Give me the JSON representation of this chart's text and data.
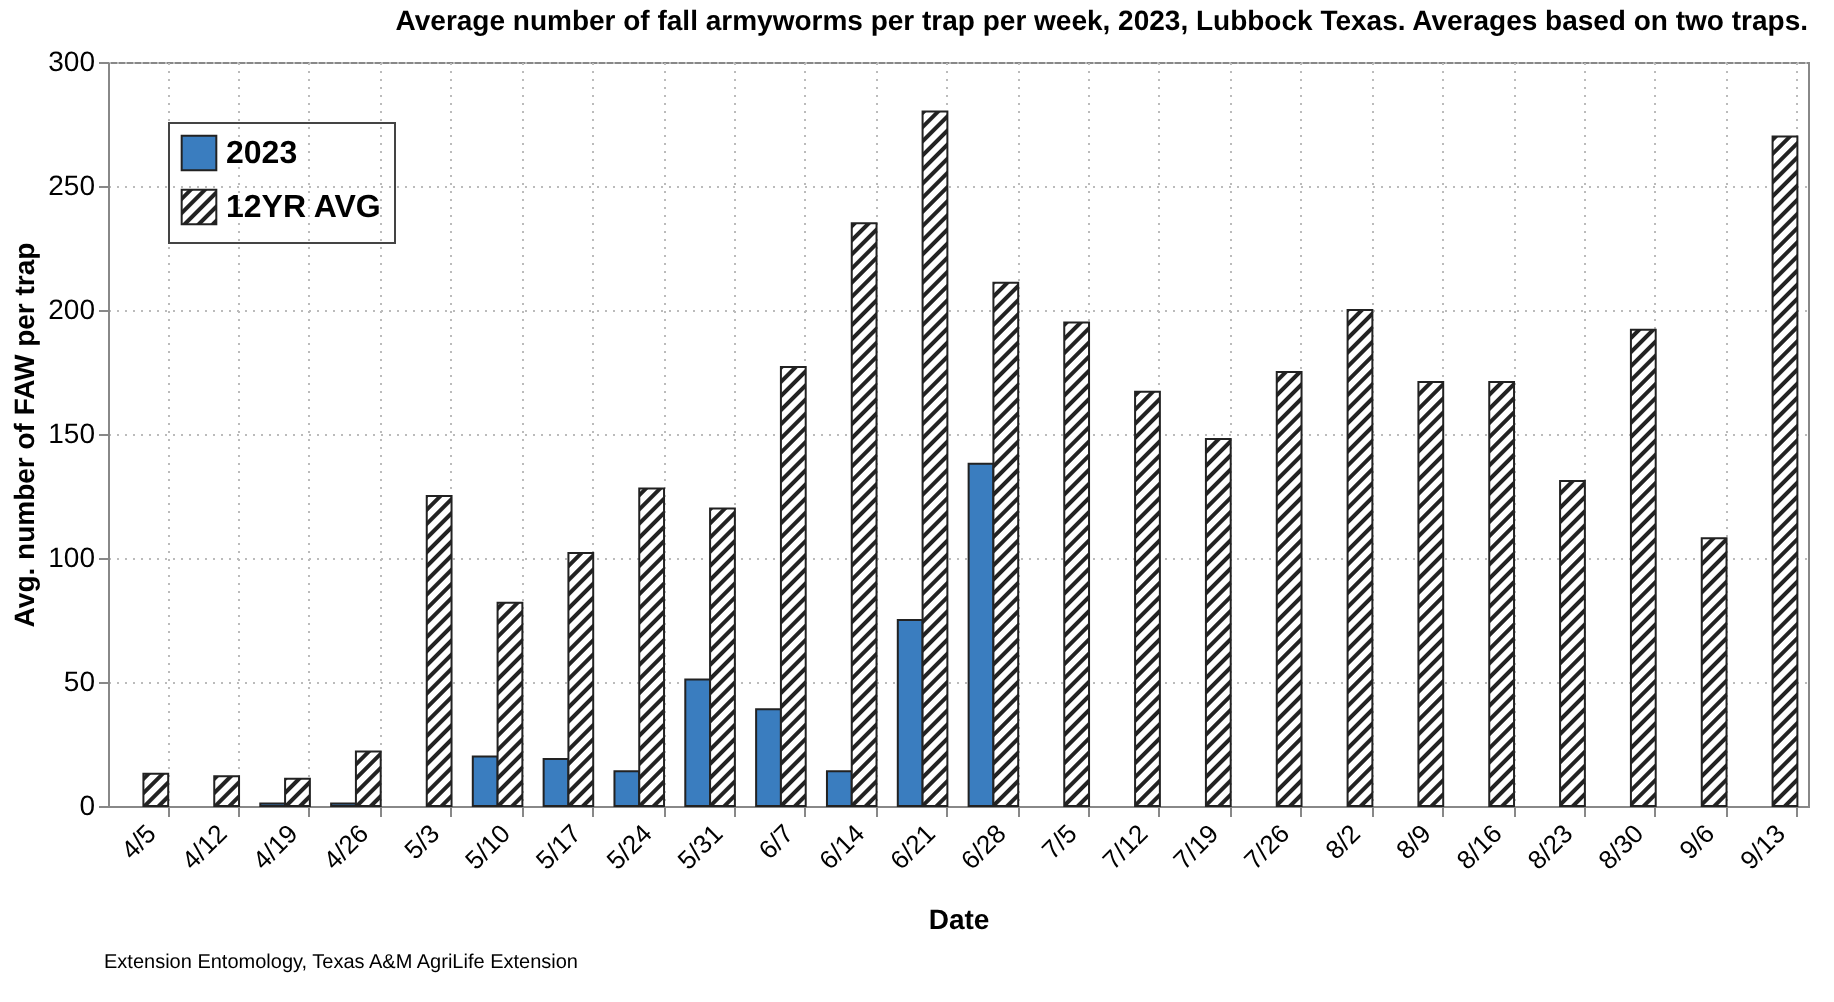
{
  "chart_data": {
    "type": "bar",
    "title": "Average number of fall armyworms per trap per week, 2023, Lubbock Texas. Averages based on two traps.",
    "xlabel": "Date",
    "ylabel": "Avg. number of FAW per trap",
    "annotations": [
      "Extension Entomology, Texas A&M AgriLife Extension"
    ],
    "categories": [
      "4/5",
      "4/12",
      "4/19",
      "4/26",
      "5/3",
      "5/10",
      "5/17",
      "5/24",
      "5/31",
      "6/7",
      "6/14",
      "6/21",
      "6/28",
      "7/5",
      "7/12",
      "7/19",
      "7/26",
      "8/2",
      "8/9",
      "8/16",
      "8/23",
      "8/30",
      "9/6",
      "9/13"
    ],
    "series": [
      {
        "name": "2023",
        "color": "#3a7dbf",
        "values": [
          null,
          null,
          1,
          1,
          null,
          20,
          19,
          14,
          51,
          39,
          14,
          75,
          138,
          null,
          null,
          null,
          null,
          null,
          null,
          null,
          null,
          null,
          null,
          null
        ]
      },
      {
        "name": "12YR AVG",
        "color": "#222222",
        "values": [
          13,
          12,
          11,
          22,
          125,
          82,
          102,
          128,
          120,
          177,
          235,
          280,
          211,
          195,
          167,
          148,
          175,
          200,
          171,
          171,
          131,
          192,
          108,
          270
        ]
      }
    ],
    "ylim": [
      0,
      300
    ],
    "yticks": [
      0,
      50,
      100,
      150,
      200,
      250,
      300
    ],
    "grid": true,
    "legend": "top left"
  }
}
